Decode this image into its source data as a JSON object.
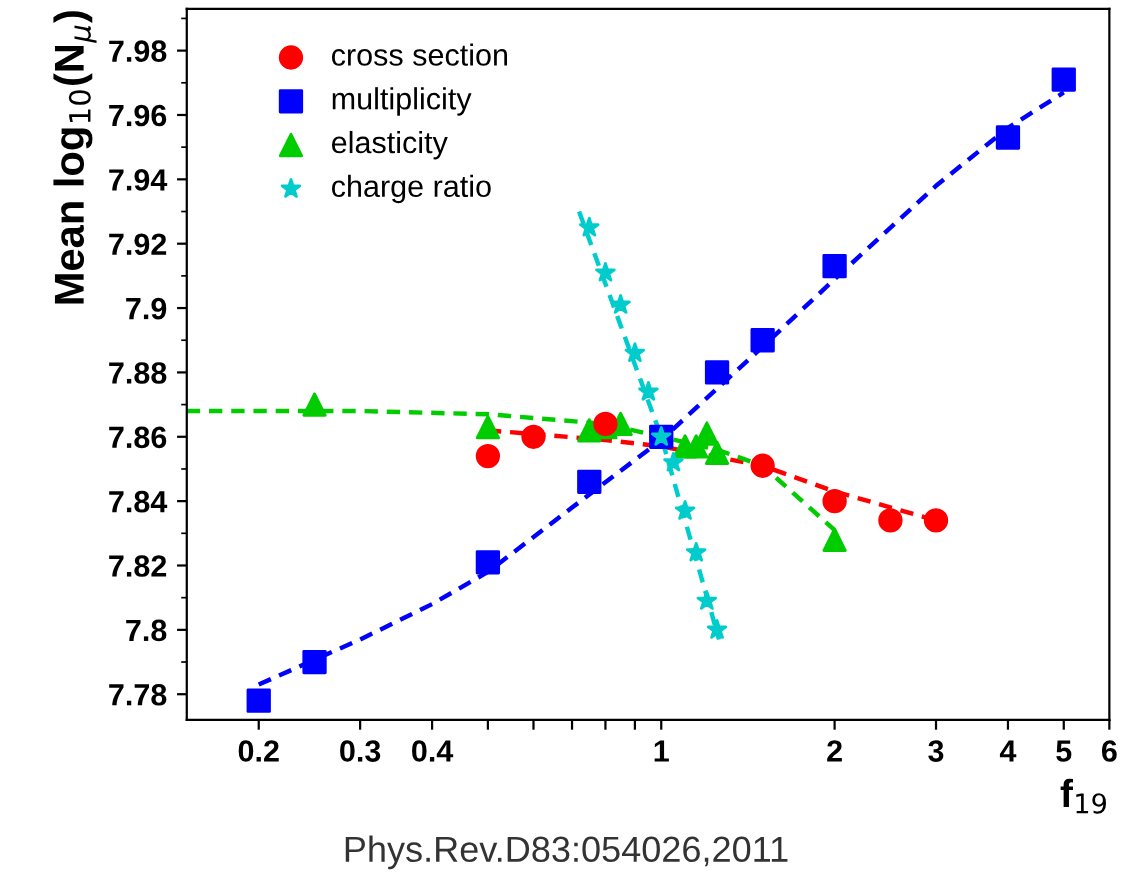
{
  "chart_data": {
    "type": "scatter",
    "xlabel": "f$_{19}$",
    "ylabel": "Mean log$_{10}$(N$_{μ}$)",
    "annotations": [
      "Phys.Rev.D83:054026,2011"
    ],
    "log": "x",
    "xlim": [
      0.15,
      6
    ],
    "ylim": [
      7.772,
      7.993
    ],
    "xticks": [
      0.2,
      0.3,
      0.4,
      {
        "value": 0.5,
        "label": null
      },
      {
        "value": 0.6,
        "label": null
      },
      {
        "value": 0.7,
        "label": null
      },
      {
        "value": 0.8,
        "label": null
      },
      {
        "value": 0.9,
        "label": null
      },
      1,
      2,
      3,
      4,
      5,
      6
    ],
    "yticks": [
      7.78,
      {
        "value": 7.8,
        "label": "7.8"
      },
      7.82,
      7.84,
      7.86,
      7.88,
      {
        "value": 7.9,
        "label": "7.9"
      },
      7.92,
      7.94,
      7.96,
      7.98
    ],
    "grid": false,
    "legend": "top left",
    "series": [
      {
        "name": "cross section",
        "color": "#ff0000",
        "marker": "circle",
        "x": [
          0.5,
          0.6,
          0.8,
          1.5,
          2,
          2.5,
          3
        ],
        "values": [
          7.854,
          7.86,
          7.864,
          7.851,
          7.84,
          7.834,
          7.834
        ]
      },
      {
        "name": "multiplicity",
        "color": "#0000ff",
        "marker": "square",
        "x": [
          0.2,
          0.25,
          0.5,
          0.75,
          1.0,
          1.25,
          1.5,
          2,
          4,
          5
        ],
        "values": [
          7.778,
          7.79,
          7.821,
          7.846,
          7.86,
          7.88,
          7.89,
          7.913,
          7.953,
          7.971
        ]
      },
      {
        "name": "elasticity",
        "color": "#00cc00",
        "marker": "triangle",
        "x": [
          0.25,
          0.5,
          0.75,
          0.8,
          0.85,
          1.1,
          1.15,
          1.2,
          1.25,
          2
        ],
        "values": [
          7.87,
          7.863,
          7.862,
          7.863,
          7.864,
          7.857,
          7.857,
          7.861,
          7.855,
          7.828
        ]
      },
      {
        "name": "charge ratio",
        "color": "#00cccc",
        "marker": "star",
        "x": [
          0.75,
          0.8,
          0.85,
          0.9,
          0.95,
          1.0,
          1.05,
          1.1,
          1.15,
          1.2,
          1.25
        ],
        "values": [
          7.925,
          7.911,
          7.901,
          7.886,
          7.874,
          7.86,
          7.852,
          7.837,
          7.824,
          7.809,
          7.8
        ]
      },
      {
        "type": "line",
        "color": "#ff0000",
        "line_style": "dashed",
        "marker": "none",
        "x": [
          0.5,
          0.8,
          1.0,
          1.5,
          2,
          3
        ],
        "values": [
          7.862,
          7.859,
          7.857,
          7.851,
          7.843,
          7.834
        ]
      },
      {
        "type": "line",
        "color": "#0000ff",
        "line_style": "dashed",
        "marker": "none",
        "x": [
          0.2,
          0.3,
          0.4,
          0.5,
          0.7,
          1.0,
          1.5,
          2,
          3,
          4,
          5
        ],
        "values": [
          7.783,
          7.797,
          7.808,
          7.818,
          7.838,
          7.859,
          7.888,
          7.909,
          7.938,
          7.956,
          7.967
        ]
      },
      {
        "type": "line",
        "color": "#00cc00",
        "line_style": "dashed",
        "marker": "none",
        "x": [
          0.15,
          0.3,
          0.5,
          0.8,
          1.0,
          1.25,
          1.5,
          2
        ],
        "values": [
          7.868,
          7.868,
          7.867,
          7.864,
          7.86,
          7.856,
          7.851,
          7.831
        ]
      },
      {
        "type": "line",
        "color": "#00cccc",
        "line_style": "dashed",
        "marker": "none",
        "x": [
          0.72,
          1.0,
          1.26
        ],
        "values": [
          7.93,
          7.86,
          7.797
        ]
      }
    ]
  }
}
